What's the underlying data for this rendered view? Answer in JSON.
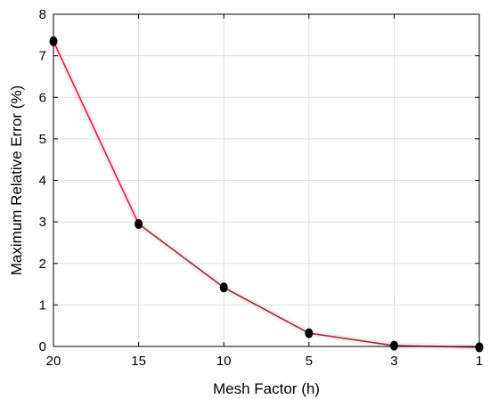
{
  "chart_data": {
    "type": "line",
    "categories": [
      "20",
      "15",
      "10",
      "5",
      "3",
      "1"
    ],
    "xlabel": "Mesh Factor (h)",
    "ylabel": "Maximum Relative Error (%)",
    "ylim": [
      0,
      8
    ],
    "yticks": [
      "0",
      "1",
      "2",
      "3",
      "4",
      "5",
      "6",
      "7",
      "8"
    ],
    "grid": true,
    "series": [
      {
        "values": [
          7.35,
          2.95,
          1.42,
          0.32,
          0.02,
          -0.02
        ]
      }
    ],
    "colors": {
      "first_segment": "#e02020",
      "line": "#8b3a1a",
      "marker": "#000000",
      "shadow": "#ff80ff"
    }
  }
}
